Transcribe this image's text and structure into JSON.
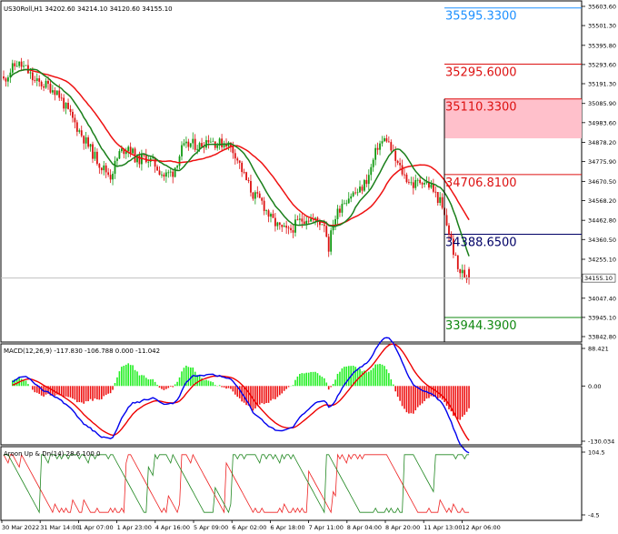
{
  "colors": {
    "background": "#ffffff",
    "frame": "#000000",
    "candle_up": "#119911",
    "candle_down": "#dd1111",
    "ma_fast": "#1a7f1a",
    "ma_slow": "#ee1111",
    "macd_line": "#0000ee",
    "signal_line": "#ee0000",
    "hist_pos": "#22ee22",
    "hist_neg": "#ee1111",
    "aroon_up": "#ee2222",
    "aroon_down": "#228822",
    "level_blue": "#1e90ff",
    "level_red": "#dd1111",
    "level_navy": "#000066",
    "level_green": "#118811",
    "zone_fill": "#ffc0cb"
  },
  "main": {
    "header": "US30Roll,H1  34202.60 34214.10 34120.60 34155.10",
    "y_ticks": [
      "35603.60",
      "35501.30",
      "35395.80",
      "35293.60",
      "35191.30",
      "35085.90",
      "34983.60",
      "34878.20",
      "34775.90",
      "34670.50",
      "34568.20",
      "34462.80",
      "34360.50",
      "34255.10",
      "34047.40",
      "33945.10",
      "33842.80"
    ],
    "y_tick_values": [
      35603.6,
      35501.3,
      35395.8,
      35293.6,
      35191.3,
      35085.9,
      34983.6,
      34878.2,
      34775.9,
      34670.5,
      34568.2,
      34462.8,
      34360.5,
      34255.1,
      34047.4,
      33945.1,
      33842.8
    ],
    "current_price": "34155.10",
    "current_price_value": 34155.1,
    "levels": [
      {
        "label": "35595.3300",
        "value": 35595.33,
        "color": "#1e90ff"
      },
      {
        "label": "35295.6000",
        "value": 35295.6,
        "color": "#dd1111"
      },
      {
        "label": "35110.3300",
        "value": 35110.33,
        "color": "#dd1111"
      },
      {
        "label": "34706.8100",
        "value": 34706.81,
        "color": "#dd1111"
      },
      {
        "label": "34388.6500",
        "value": 34388.65,
        "color": "#000066"
      },
      {
        "label": "33944.3900",
        "value": 33944.39,
        "color": "#118811"
      }
    ],
    "zone": {
      "top": 35110.33,
      "bottom": 34900
    }
  },
  "macd": {
    "header": "MACD(12,26,9) -117.830 -106.788 0.000 -11.042",
    "y_ticks": [
      "88.421",
      "0.00",
      "-130.034"
    ],
    "y_tick_values": [
      88.421,
      0,
      -130.034
    ]
  },
  "aroon": {
    "header": "Aroon Up & Dn(14) 28.6 100.0",
    "y_ticks": [
      "104.5",
      "-4.5"
    ],
    "y_tick_values": [
      104.5,
      -4.5
    ]
  },
  "x_labels": [
    "30 Mar 2022",
    "31 Mar 14:00",
    "1 Apr 07:00",
    "1 Apr 23:00",
    "4 Apr 16:00",
    "5 Apr 09:00",
    "6 Apr 02:00",
    "6 Apr 18:00",
    "7 Apr 11:00",
    "8 Apr 04:00",
    "8 Apr 20:00",
    "11 Apr 13:00",
    "12 Apr 06:00"
  ],
  "chart_data": {
    "type": "candlestick",
    "symbol": "US30Roll",
    "timeframe": "H1",
    "last_bar": {
      "open": 34202.6,
      "high": 34214.1,
      "low": 34120.6,
      "close": 34155.1
    },
    "price_keypoints": [
      [
        0,
        35210
      ],
      [
        3,
        35260
      ],
      [
        6,
        35300
      ],
      [
        10,
        35270
      ],
      [
        14,
        35200
      ],
      [
        20,
        35180
      ],
      [
        24,
        35150
      ],
      [
        28,
        35060
      ],
      [
        32,
        34980
      ],
      [
        36,
        34900
      ],
      [
        40,
        34820
      ],
      [
        44,
        34750
      ],
      [
        48,
        34700
      ],
      [
        52,
        34820
      ],
      [
        56,
        34860
      ],
      [
        60,
        34780
      ],
      [
        64,
        34800
      ],
      [
        68,
        34760
      ],
      [
        72,
        34700
      ],
      [
        76,
        34720
      ],
      [
        80,
        34840
      ],
      [
        84,
        34870
      ],
      [
        88,
        34860
      ],
      [
        92,
        34900
      ],
      [
        96,
        34870
      ],
      [
        100,
        34880
      ],
      [
        104,
        34820
      ],
      [
        108,
        34700
      ],
      [
        112,
        34600
      ],
      [
        116,
        34560
      ],
      [
        120,
        34470
      ],
      [
        124,
        34420
      ],
      [
        128,
        34400
      ],
      [
        132,
        34450
      ],
      [
        136,
        34480
      ],
      [
        140,
        34460
      ],
      [
        144,
        34450
      ],
      [
        146,
        34320
      ],
      [
        148,
        34450
      ],
      [
        152,
        34560
      ],
      [
        156,
        34600
      ],
      [
        160,
        34620
      ],
      [
        164,
        34700
      ],
      [
        168,
        34860
      ],
      [
        172,
        34900
      ],
      [
        176,
        34780
      ],
      [
        180,
        34700
      ],
      [
        184,
        34650
      ],
      [
        188,
        34680
      ],
      [
        192,
        34640
      ],
      [
        196,
        34560
      ],
      [
        200,
        34400
      ],
      [
        204,
        34200
      ],
      [
        208,
        34160
      ]
    ]
  }
}
